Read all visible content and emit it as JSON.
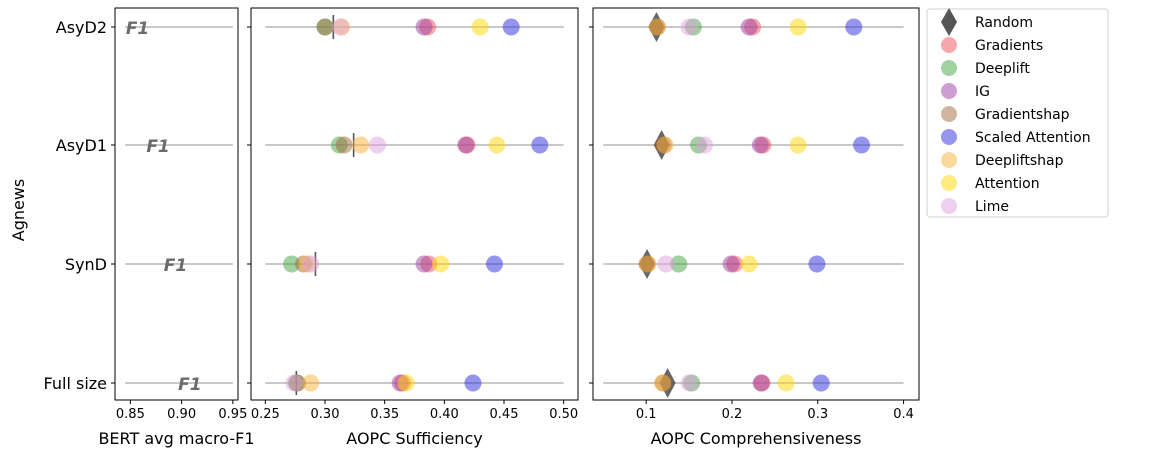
{
  "figure": {
    "ylabel": "Agnews",
    "row_labels": [
      "AsyD2",
      "AsyD1",
      "SynD",
      "Full size"
    ]
  },
  "chart_data": [
    {
      "type": "scatter",
      "title": "",
      "xlabel": "BERT avg macro-F1",
      "ylabel": "Agnews",
      "xlim": [
        0.835,
        0.955
      ],
      "xticks": [
        0.85,
        0.9,
        0.95
      ],
      "xtick_labels": [
        "0.85",
        "0.90",
        "0.95"
      ],
      "categories": [
        "AsyD2",
        "AsyD1",
        "SynD",
        "Full size"
      ],
      "marker_label": "F1",
      "marker_color": "#6b6b6b",
      "series": [
        {
          "values": [
            0.857,
            0.877,
            0.894,
            0.908
          ]
        }
      ]
    },
    {
      "type": "scatter",
      "title": "",
      "xlabel": "AOPC Sufficiency",
      "ylabel": "",
      "xlim": [
        0.238,
        0.512
      ],
      "xticks": [
        0.25,
        0.3,
        0.35,
        0.4,
        0.45,
        0.5
      ],
      "xtick_labels": [
        "0.25",
        "0.30",
        "0.35",
        "0.40",
        "0.45",
        "0.50"
      ],
      "categories": [
        "AsyD2",
        "AsyD1",
        "SynD",
        "Full size"
      ],
      "baseline": [
        0.307,
        0.324,
        0.292,
        0.276
      ],
      "series": [
        {
          "name": "Gradients",
          "values": [
            0.386,
            0.419,
            0.387,
            0.365
          ]
        },
        {
          "name": "Deeplift",
          "values": [
            0.3,
            0.312,
            0.272,
            0.276
          ]
        },
        {
          "name": "IG",
          "values": [
            0.383,
            0.418,
            0.383,
            0.363
          ]
        },
        {
          "name": "Gradientshap",
          "values": [
            0.3,
            0.316,
            0.282,
            0.277
          ]
        },
        {
          "name": "Scaled Attention",
          "values": [
            0.456,
            0.48,
            0.442,
            0.424
          ]
        },
        {
          "name": "Deepliftshap",
          "values": [
            0.314,
            0.33,
            0.285,
            0.288
          ]
        },
        {
          "name": "Attention",
          "values": [
            0.43,
            0.444,
            0.397,
            0.368
          ]
        },
        {
          "name": "Lime",
          "values": [
            0.313,
            0.344,
            0.288,
            0.274
          ]
        }
      ]
    },
    {
      "type": "scatter",
      "title": "",
      "xlabel": "AOPC Comprehensiveness",
      "ylabel": "",
      "xlim": [
        0.038,
        0.418
      ],
      "xticks": [
        0.1,
        0.2,
        0.3,
        0.4
      ],
      "xtick_labels": [
        "0.1",
        "0.2",
        "0.3",
        "0.4"
      ],
      "categories": [
        "AsyD2",
        "AsyD1",
        "SynD",
        "Full size"
      ],
      "series": [
        {
          "name": "Random",
          "values": [
            0.112,
            0.118,
            0.101,
            0.125
          ]
        },
        {
          "name": "Gradients",
          "values": [
            0.224,
            0.236,
            0.203,
            0.235
          ]
        },
        {
          "name": "Deeplift",
          "values": [
            0.155,
            0.161,
            0.138,
            0.153
          ]
        },
        {
          "name": "IG",
          "values": [
            0.22,
            0.233,
            0.199,
            0.234
          ]
        },
        {
          "name": "Gradientshap",
          "values": [
            0.113,
            0.12,
            0.101,
            0.12
          ]
        },
        {
          "name": "Scaled Attention",
          "values": [
            0.342,
            0.351,
            0.299,
            0.304
          ]
        },
        {
          "name": "Deepliftshap",
          "values": [
            0.113,
            0.122,
            0.102,
            0.119
          ]
        },
        {
          "name": "Attention",
          "values": [
            0.277,
            0.277,
            0.22,
            0.263
          ]
        },
        {
          "name": "Lime",
          "values": [
            0.15,
            0.168,
            0.123,
            0.15
          ]
        }
      ]
    }
  ],
  "legend": {
    "placement": "outside-right",
    "items": [
      {
        "label": "Random",
        "color": "#555555",
        "marker": "diamond"
      },
      {
        "label": "Gradients",
        "color": "#f14f5a",
        "marker": "circle"
      },
      {
        "label": "Deeplift",
        "color": "#43a43f",
        "marker": "circle"
      },
      {
        "label": "IG",
        "color": "#9b3fa3",
        "marker": "circle"
      },
      {
        "label": "Gradientshap",
        "color": "#a36a3f",
        "marker": "circle"
      },
      {
        "label": "Scaled Attention",
        "color": "#2b2bdd",
        "marker": "circle"
      },
      {
        "label": "Deepliftshap",
        "color": "#fbb23a",
        "marker": "circle"
      },
      {
        "label": "Attention",
        "color": "#ffd700",
        "marker": "circle"
      },
      {
        "label": "Lime",
        "color": "#dda0dd",
        "marker": "circle"
      }
    ]
  }
}
